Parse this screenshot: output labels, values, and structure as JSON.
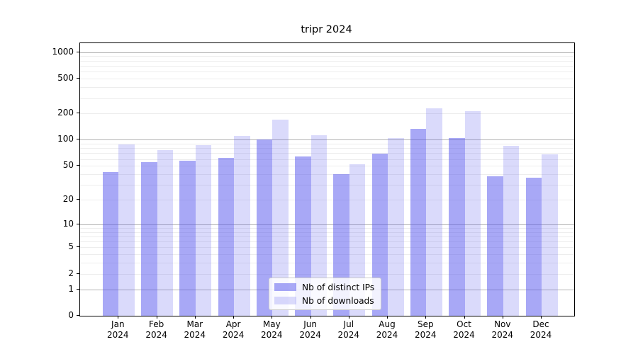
{
  "chart_data": {
    "type": "bar",
    "title": "tripr 2024",
    "categories": [
      "Jan 2024",
      "Feb 2024",
      "Mar 2024",
      "Apr 2024",
      "May 2024",
      "Jun 2024",
      "Jul 2024",
      "Aug 2024",
      "Sep 2024",
      "Oct 2024",
      "Nov 2024",
      "Dec 2024"
    ],
    "x_tick_line1": [
      "Jan",
      "Feb",
      "Mar",
      "Apr",
      "May",
      "Jun",
      "Jul",
      "Aug",
      "Sep",
      "Oct",
      "Nov",
      "Dec"
    ],
    "x_tick_line2": "2024",
    "series": [
      {
        "name": "Nb of distinct IPs",
        "color": "rgba(88,88,238,0.52)",
        "values": [
          42,
          55,
          57,
          62,
          100,
          64,
          40,
          69,
          133,
          105,
          38,
          36
        ]
      },
      {
        "name": "Nb of downloads",
        "color": "rgba(88,88,238,0.22)",
        "values": [
          88,
          76,
          86,
          110,
          170,
          113,
          52,
          105,
          230,
          212,
          85,
          68
        ]
      }
    ],
    "y_scale": "log1p",
    "y_ticks": [
      0,
      1,
      2,
      5,
      10,
      20,
      50,
      100,
      200,
      500,
      1000
    ],
    "y_minor_gridlines": [
      2,
      3,
      4,
      5,
      6,
      7,
      8,
      9,
      20,
      30,
      40,
      50,
      60,
      70,
      80,
      90,
      200,
      300,
      400,
      500,
      600,
      700,
      800,
      900
    ],
    "y_major_gridlines": [
      1,
      10,
      100,
      1000
    ],
    "ylim": [
      0,
      1270
    ],
    "grid": true,
    "legend_position": "lower center",
    "colors": {
      "major_grid": "#b2b2b2",
      "minor_grid": "#ededed",
      "spine": "#000000"
    }
  }
}
